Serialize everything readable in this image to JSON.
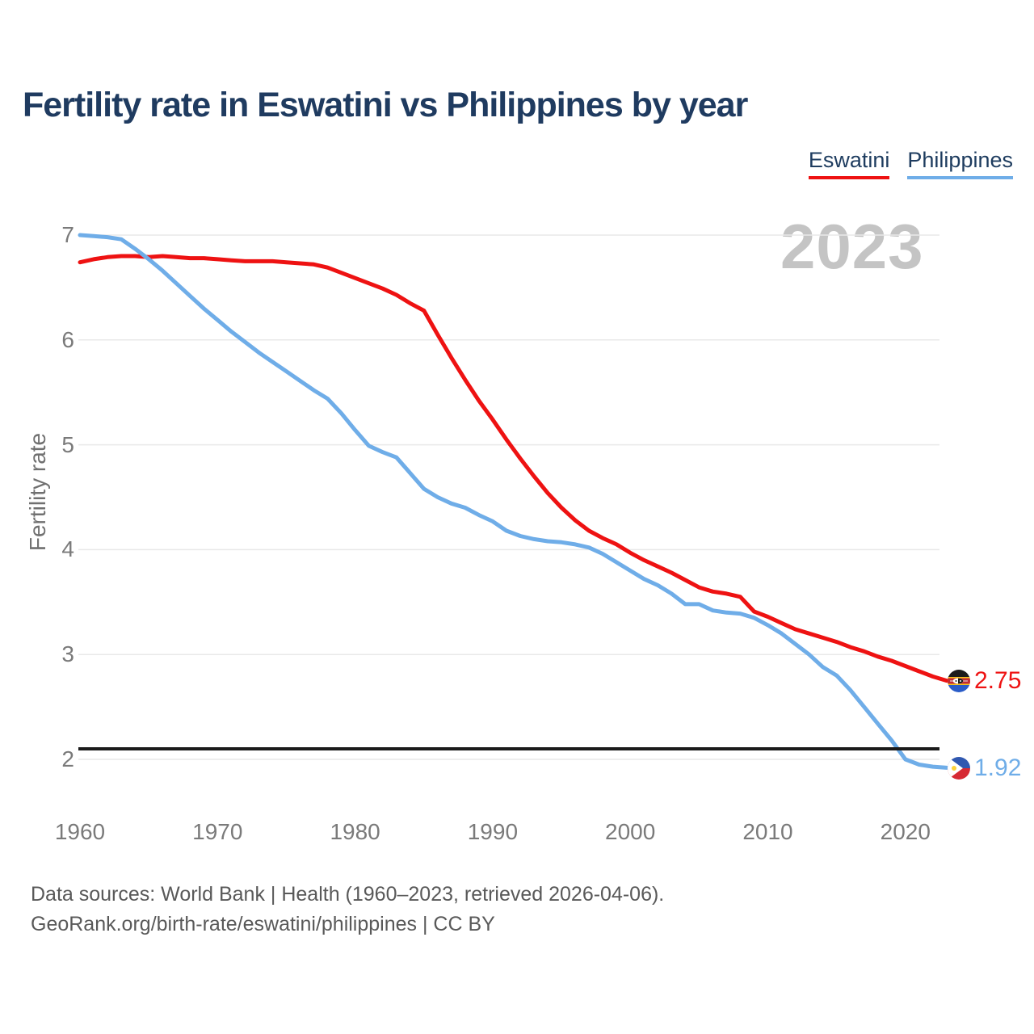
{
  "header": {
    "title": "Fertility rate in Eswatini vs Philippines by year"
  },
  "legend": {
    "items": [
      {
        "label": "Eswatini",
        "color": "#ee1212"
      },
      {
        "label": "Philippines",
        "color": "#6fade8"
      }
    ]
  },
  "watermark": {
    "text": "2023"
  },
  "chart_data": {
    "type": "line",
    "title": "Fertility rate in Eswatini vs Philippines by year",
    "xlabel": "",
    "ylabel": "Fertility rate",
    "xlim": [
      1960,
      2023
    ],
    "ylim": [
      1.8,
      7.1
    ],
    "x_ticks": [
      1960,
      1970,
      1980,
      1990,
      2000,
      2010,
      2020
    ],
    "y_ticks": [
      7,
      6,
      5,
      4,
      3,
      2
    ],
    "grid": "horizontal",
    "legend_position": "top-right",
    "reference_line": {
      "value": 2.1,
      "color": "#1a1a1a"
    },
    "years": [
      1960,
      1961,
      1962,
      1963,
      1964,
      1965,
      1966,
      1967,
      1968,
      1969,
      1970,
      1971,
      1972,
      1973,
      1974,
      1975,
      1976,
      1977,
      1978,
      1979,
      1980,
      1981,
      1982,
      1983,
      1984,
      1985,
      1986,
      1987,
      1988,
      1989,
      1990,
      1991,
      1992,
      1993,
      1994,
      1995,
      1996,
      1997,
      1998,
      1999,
      2000,
      2001,
      2002,
      2003,
      2004,
      2005,
      2006,
      2007,
      2008,
      2009,
      2010,
      2011,
      2012,
      2013,
      2014,
      2015,
      2016,
      2017,
      2018,
      2019,
      2020,
      2021,
      2022,
      2023
    ],
    "series": [
      {
        "name": "Eswatini",
        "color": "#ee1212",
        "final_value": "2.75",
        "values": [
          6.74,
          6.77,
          6.79,
          6.8,
          6.8,
          6.79,
          6.8,
          6.79,
          6.78,
          6.78,
          6.77,
          6.76,
          6.75,
          6.75,
          6.75,
          6.74,
          6.73,
          6.72,
          6.69,
          6.64,
          6.59,
          6.54,
          6.49,
          6.43,
          6.35,
          6.28,
          6.05,
          5.83,
          5.62,
          5.42,
          5.24,
          5.05,
          4.87,
          4.7,
          4.54,
          4.4,
          4.28,
          4.18,
          4.11,
          4.05,
          3.97,
          3.9,
          3.84,
          3.78,
          3.71,
          3.64,
          3.6,
          3.58,
          3.55,
          3.41,
          3.36,
          3.3,
          3.24,
          3.2,
          3.16,
          3.12,
          3.07,
          3.03,
          2.98,
          2.94,
          2.89,
          2.84,
          2.79,
          2.75
        ]
      },
      {
        "name": "Philippines",
        "color": "#6fade8",
        "final_value": "1.92",
        "values": [
          7.0,
          6.99,
          6.98,
          6.96,
          6.87,
          6.77,
          6.66,
          6.54,
          6.42,
          6.3,
          6.19,
          6.08,
          5.98,
          5.88,
          5.79,
          5.7,
          5.61,
          5.52,
          5.44,
          5.3,
          5.14,
          4.99,
          4.93,
          4.88,
          4.73,
          4.58,
          4.5,
          4.44,
          4.4,
          4.33,
          4.27,
          4.18,
          4.13,
          4.1,
          4.08,
          4.07,
          4.05,
          4.02,
          3.96,
          3.88,
          3.8,
          3.72,
          3.66,
          3.58,
          3.48,
          3.48,
          3.42,
          3.4,
          3.39,
          3.35,
          3.28,
          3.2,
          3.1,
          3.0,
          2.88,
          2.8,
          2.66,
          2.5,
          2.34,
          2.18,
          2.0,
          1.95,
          1.93,
          1.92
        ]
      }
    ]
  },
  "footer": {
    "line1": "Data sources: World Bank | Health (1960–2023, retrieved 2026-04-06).",
    "line2": "GeoRank.org/birth-rate/eswatini/philippines | CC BY"
  }
}
